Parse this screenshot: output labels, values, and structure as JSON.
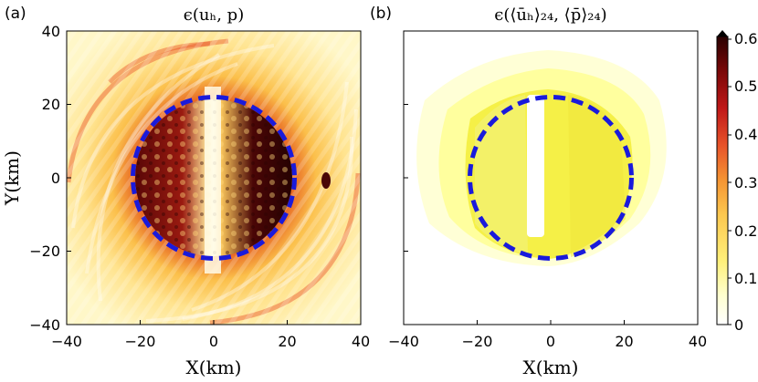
{
  "chart_data": [
    {
      "type": "heatmap",
      "panel_label": "(a)",
      "title": "ϵ(uₕ, p)",
      "xlabel": "X(km)",
      "ylabel": "Y(km)",
      "xlim": [
        -40,
        40
      ],
      "ylim": [
        -40,
        40
      ],
      "xticks": [
        "−40",
        "−20",
        "0",
        "20",
        "40"
      ],
      "yticks": [
        "40",
        "20",
        "0",
        "−20",
        "−40"
      ],
      "circle": {
        "center": [
          0,
          0
        ],
        "radius_km": 22,
        "style": "dashed",
        "color": "#1a1adb"
      },
      "description_values": "error field with spiral wave pattern; high values (~0.5–0.6) inside circle, low values near x=0 stripe"
    },
    {
      "type": "heatmap",
      "panel_label": "(b)",
      "title": "ϵ(⟨ūₕ⟩₂₄, ⟨p̄⟩₂₄)",
      "xlabel": "X(km)",
      "ylabel": "",
      "xlim": [
        -40,
        40
      ],
      "ylim": [
        -40,
        40
      ],
      "xticks": [
        "−40",
        "−20",
        "0",
        "20",
        "40"
      ],
      "circle": {
        "center": [
          0,
          0
        ],
        "radius_km": 22,
        "style": "dashed",
        "color": "#1a1adb"
      },
      "description_values": "smoothed error field; values ~0.1–0.2 inside circle, ~0.05 outside, white stripe near x=-5"
    }
  ],
  "colorbar": {
    "ticks": [
      "0.6",
      "0.5",
      "0.4",
      "0.3",
      "0.2",
      "0.1",
      "0"
    ],
    "range": [
      0,
      0.6
    ],
    "colors": [
      "#ffffff",
      "#ffffd0",
      "#fff07a",
      "#fcc850",
      "#f59533",
      "#e8542a",
      "#c01818",
      "#7a0808",
      "#2a0202"
    ]
  }
}
